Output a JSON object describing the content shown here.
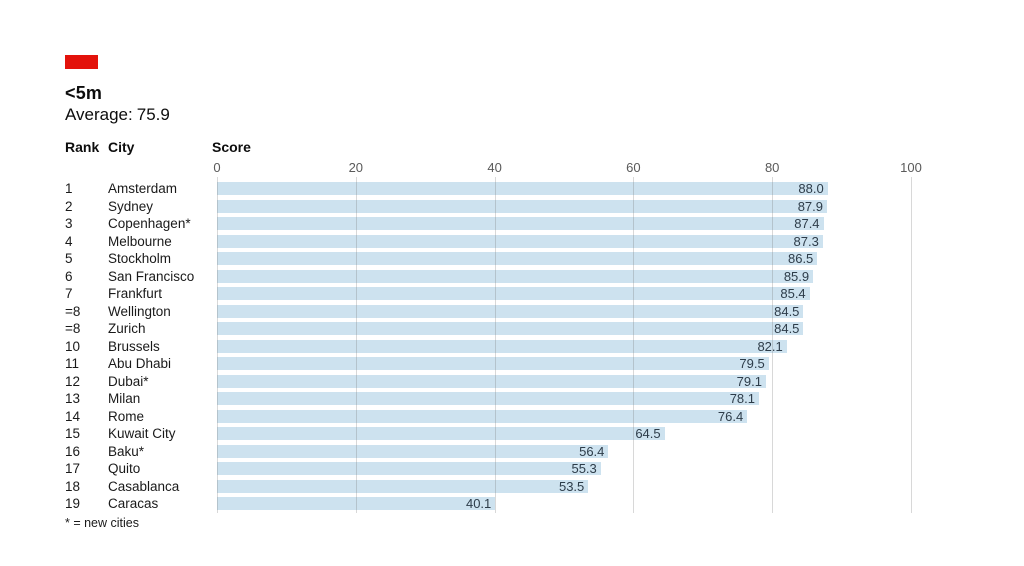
{
  "header": {
    "accent_color": "#e3120b",
    "title": "<5m",
    "average_label": "Average:",
    "average_value": "75.9"
  },
  "columns": {
    "rank_header": "Rank",
    "city_header": "City",
    "score_header": "Score"
  },
  "footnote": "* = new cities",
  "chart_data": {
    "type": "bar",
    "orientation": "horizontal",
    "title": "<5m",
    "subtitle": "Average: 75.9",
    "average": 75.9,
    "xlabel": "Score",
    "xlim": [
      0,
      100
    ],
    "ticks": [
      0,
      20,
      40,
      60,
      80,
      100
    ],
    "grid": "vertical",
    "bar_color": "#cde2ef",
    "value_labels": "inside-right",
    "rows": [
      {
        "rank": "1",
        "city": "Amsterdam",
        "score": "88.0",
        "value": 88.0
      },
      {
        "rank": "2",
        "city": "Sydney",
        "score": "87.9",
        "value": 87.9
      },
      {
        "rank": "3",
        "city": "Copenhagen*",
        "score": "87.4",
        "value": 87.4
      },
      {
        "rank": "4",
        "city": "Melbourne",
        "score": "87.3",
        "value": 87.3
      },
      {
        "rank": "5",
        "city": "Stockholm",
        "score": "86.5",
        "value": 86.5
      },
      {
        "rank": "6",
        "city": "San Francisco",
        "score": "85.9",
        "value": 85.9
      },
      {
        "rank": "7",
        "city": "Frankfurt",
        "score": "85.4",
        "value": 85.4
      },
      {
        "rank": "=8",
        "city": "Wellington",
        "score": "84.5",
        "value": 84.5
      },
      {
        "rank": "=8",
        "city": "Zurich",
        "score": "84.5",
        "value": 84.5
      },
      {
        "rank": "10",
        "city": "Brussels",
        "score": "82.1",
        "value": 82.1
      },
      {
        "rank": "11",
        "city": "Abu Dhabi",
        "score": "79.5",
        "value": 79.5
      },
      {
        "rank": "12",
        "city": "Dubai*",
        "score": "79.1",
        "value": 79.1
      },
      {
        "rank": "13",
        "city": "Milan",
        "score": "78.1",
        "value": 78.1
      },
      {
        "rank": "14",
        "city": "Rome",
        "score": "76.4",
        "value": 76.4
      },
      {
        "rank": "15",
        "city": "Kuwait City",
        "score": "64.5",
        "value": 64.5
      },
      {
        "rank": "16",
        "city": "Baku*",
        "score": "56.4",
        "value": 56.4
      },
      {
        "rank": "17",
        "city": "Quito",
        "score": "55.3",
        "value": 55.3
      },
      {
        "rank": "18",
        "city": "Casablanca",
        "score": "53.5",
        "value": 53.5
      },
      {
        "rank": "19",
        "city": "Caracas",
        "score": "40.1",
        "value": 40.1
      }
    ]
  }
}
